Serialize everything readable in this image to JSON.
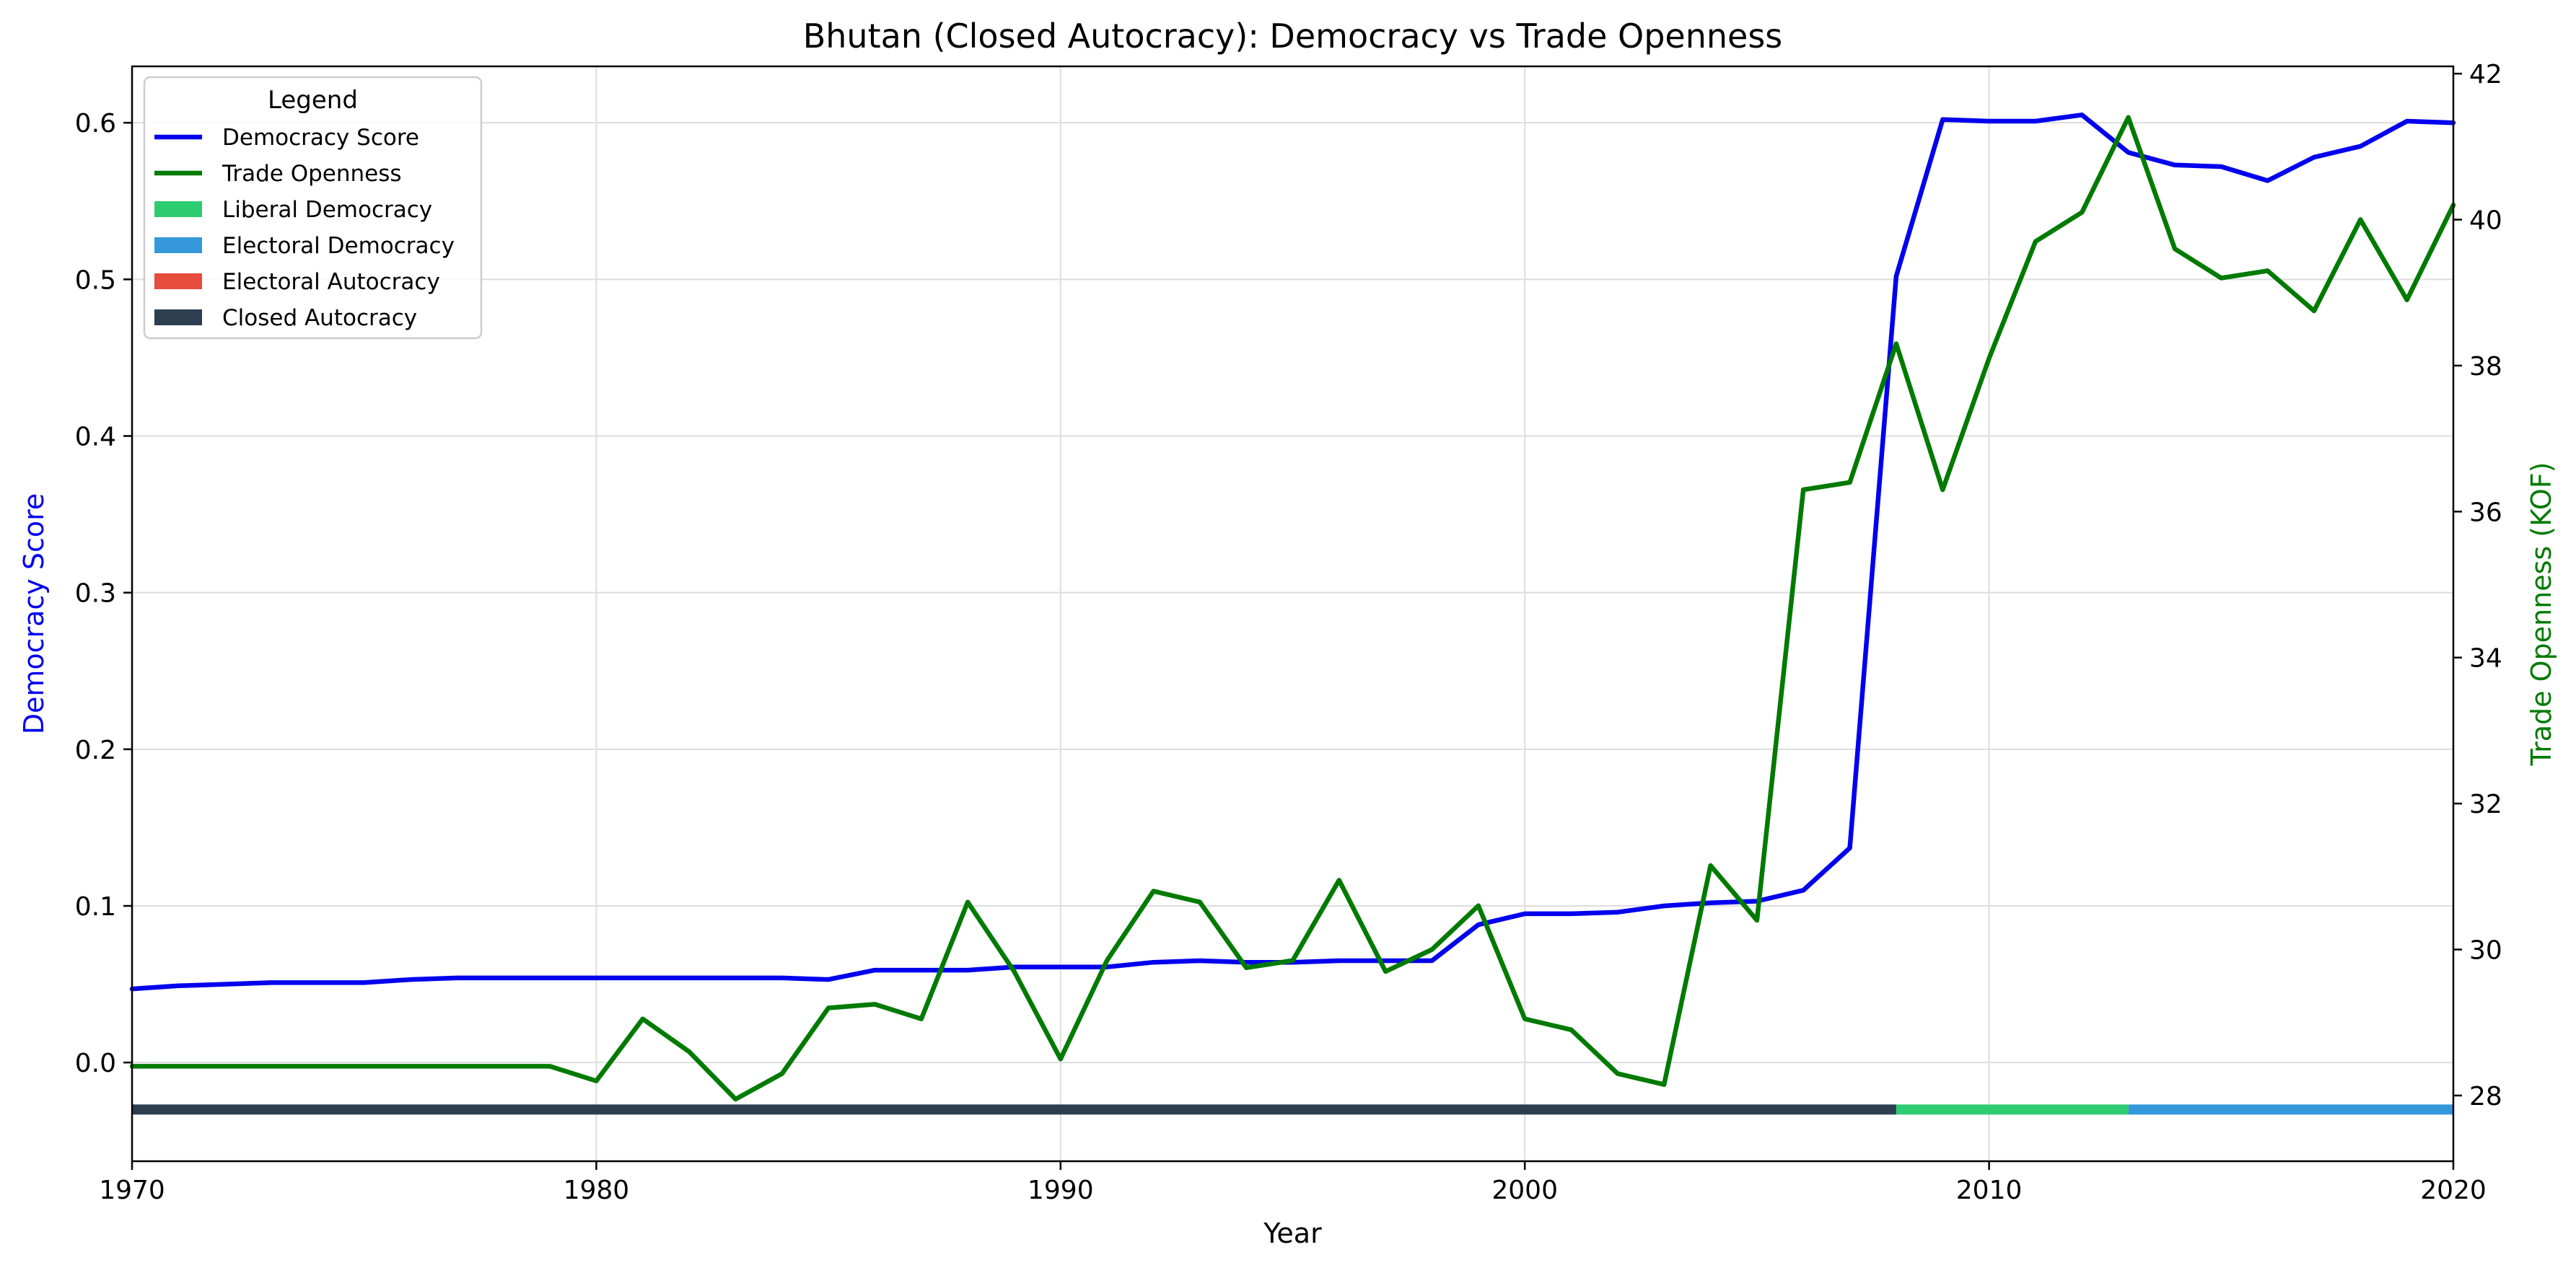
{
  "chart_data": {
    "type": "line",
    "title": "Bhutan (Closed Autocracy): Democracy vs Trade Openness",
    "xlabel": "Year",
    "ylabel_left": "Democracy Score",
    "ylabel_right": "Trade Openness (KOF)",
    "xlim": [
      1970,
      2020
    ],
    "ylim_left": [
      -0.063,
      0.636
    ],
    "ylim_right": [
      27.1,
      42.1
    ],
    "x_ticks": [
      1970,
      1980,
      1990,
      2000,
      2010,
      2020
    ],
    "y_left_ticks": [
      "0.0",
      "0.1",
      "0.2",
      "0.3",
      "0.4",
      "0.5",
      "0.6"
    ],
    "y_right_ticks": [
      "28",
      "30",
      "32",
      "34",
      "36",
      "38",
      "40",
      "42"
    ],
    "grid": true,
    "colors": {
      "democracy": "#0000ee",
      "trade": "#007a00",
      "liberal_democracy": "#2ecc71",
      "electoral_democracy": "#3498db",
      "electoral_autocracy": "#e74c3c",
      "closed_autocracy": "#2c3e50"
    },
    "legend": {
      "title": "Legend",
      "placement": "top-left",
      "entries": [
        {
          "label": "Democracy Score",
          "kind": "line",
          "color": "#0000ee"
        },
        {
          "label": "Trade Openness",
          "kind": "line",
          "color": "#007a00"
        },
        {
          "label": "Liberal Democracy",
          "kind": "patch",
          "color": "#2ecc71"
        },
        {
          "label": "Electoral Democracy",
          "kind": "patch",
          "color": "#3498db"
        },
        {
          "label": "Electoral Autocracy",
          "kind": "patch",
          "color": "#e74c3c"
        },
        {
          "label": "Closed Autocracy",
          "kind": "patch",
          "color": "#2c3e50"
        }
      ]
    },
    "x": [
      1970,
      1971,
      1972,
      1973,
      1974,
      1975,
      1976,
      1977,
      1978,
      1979,
      1980,
      1981,
      1982,
      1983,
      1984,
      1985,
      1986,
      1987,
      1988,
      1989,
      1990,
      1991,
      1992,
      1993,
      1994,
      1995,
      1996,
      1997,
      1998,
      1999,
      2000,
      2001,
      2002,
      2003,
      2004,
      2005,
      2006,
      2007,
      2008,
      2009,
      2010,
      2011,
      2012,
      2013,
      2014,
      2015,
      2016,
      2017,
      2018,
      2019,
      2020
    ],
    "series": [
      {
        "name": "Democracy Score",
        "axis": "left",
        "values": [
          0.047,
          0.049,
          0.05,
          0.051,
          0.051,
          0.051,
          0.053,
          0.054,
          0.054,
          0.054,
          0.054,
          0.054,
          0.054,
          0.054,
          0.054,
          0.053,
          0.059,
          0.059,
          0.059,
          0.061,
          0.061,
          0.061,
          0.064,
          0.065,
          0.064,
          0.064,
          0.065,
          0.065,
          0.065,
          0.088,
          0.095,
          0.095,
          0.096,
          0.1,
          0.102,
          0.103,
          0.11,
          0.137,
          0.502,
          0.602,
          0.601,
          0.601,
          0.605,
          0.581,
          0.573,
          0.572,
          0.563,
          0.578,
          0.585,
          0.601,
          0.6
        ]
      },
      {
        "name": "Trade Openness",
        "axis": "right",
        "values": [
          28.4,
          28.4,
          28.4,
          28.4,
          28.4,
          28.4,
          28.4,
          28.4,
          28.4,
          28.4,
          28.2,
          29.05,
          28.6,
          27.95,
          28.3,
          29.2,
          29.25,
          29.05,
          30.65,
          29.7,
          28.5,
          29.85,
          30.8,
          30.65,
          29.75,
          29.85,
          30.95,
          29.7,
          30.0,
          30.6,
          29.05,
          28.9,
          28.3,
          28.15,
          31.15,
          30.4,
          36.3,
          36.4,
          38.3,
          36.3,
          38.1,
          39.7,
          40.1,
          41.4,
          39.6,
          39.2,
          39.3,
          38.75,
          40.0,
          38.9,
          40.2
        ]
      }
    ],
    "regime_bands": [
      {
        "regime": "Closed Autocracy",
        "start": 1970,
        "end": 2008
      },
      {
        "regime": "Liberal Democracy",
        "start": 2008,
        "end": 2013
      },
      {
        "regime": "Electoral Democracy",
        "start": 2013,
        "end": 2020
      }
    ]
  }
}
